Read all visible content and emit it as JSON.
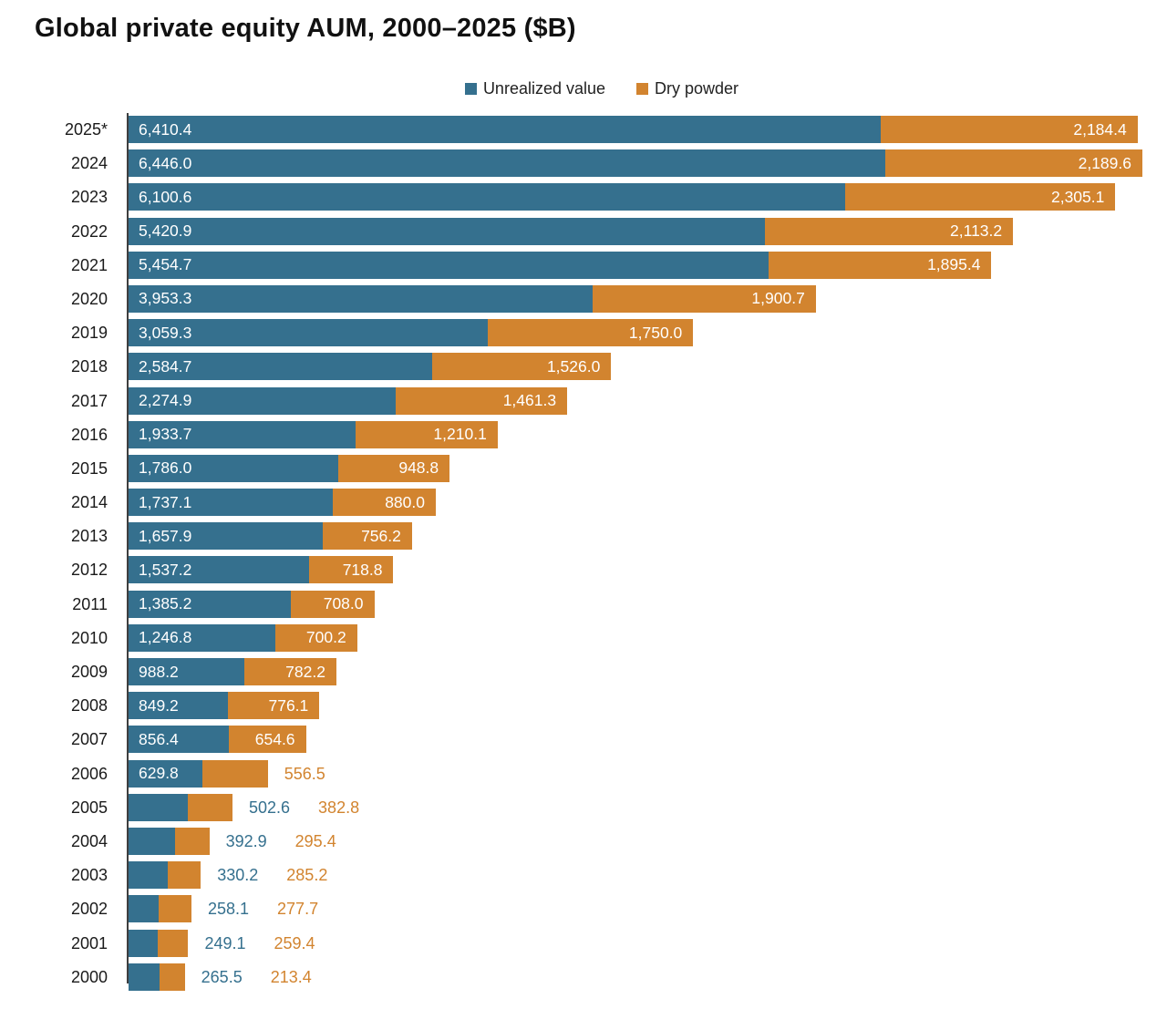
{
  "title": "Global private equity AUM, 2000–2025 ($B)",
  "legend": {
    "items": [
      {
        "label": "Unrealized value",
        "color": "#35708E"
      },
      {
        "label": "Dry powder",
        "color": "#D2842F"
      }
    ]
  },
  "colors": {
    "unrealized": "#35708E",
    "dry_powder": "#D2842F",
    "inside_label_text": "#FFFFFF",
    "year_label_text": "#1A1A1A",
    "axis_line": "#3F3F3F",
    "background": "#FFFFFF"
  },
  "chart_data": {
    "type": "bar",
    "orientation": "horizontal",
    "stacked": true,
    "title": "Global private equity AUM, 2000–2025 ($B)",
    "value_unit": "$B",
    "legend_position": "top-center",
    "grid": false,
    "x_range": [
      0,
      8635.6
    ],
    "categories": [
      "2025*",
      "2024",
      "2023",
      "2022",
      "2021",
      "2020",
      "2019",
      "2018",
      "2017",
      "2016",
      "2015",
      "2014",
      "2013",
      "2012",
      "2011",
      "2010",
      "2009",
      "2008",
      "2007",
      "2006",
      "2005",
      "2004",
      "2003",
      "2002",
      "2001",
      "2000"
    ],
    "series": [
      {
        "name": "Unrealized value",
        "color": "#35708E",
        "values": [
          6410.4,
          6446.0,
          6100.6,
          5420.9,
          5454.7,
          3953.3,
          3059.3,
          2584.7,
          2274.9,
          1933.7,
          1786.0,
          1737.1,
          1657.9,
          1537.2,
          1385.2,
          1246.8,
          988.2,
          849.2,
          856.4,
          629.8,
          502.6,
          392.9,
          330.2,
          258.1,
          249.1,
          265.5
        ]
      },
      {
        "name": "Dry powder",
        "color": "#D2842F",
        "values": [
          2184.4,
          2189.6,
          2305.1,
          2113.2,
          1895.4,
          1900.7,
          1750.0,
          1526.0,
          1461.3,
          1210.1,
          948.8,
          880.0,
          756.2,
          718.8,
          708.0,
          700.2,
          782.2,
          776.1,
          654.6,
          556.5,
          382.8,
          295.4,
          285.2,
          277.7,
          259.4,
          213.4
        ]
      }
    ],
    "label_layout": {
      "unrealized_label_outside_years": [
        "2005",
        "2004",
        "2003",
        "2002",
        "2001",
        "2000"
      ],
      "dry_label_outside_years": [
        "2006",
        "2005",
        "2004",
        "2003",
        "2002",
        "2001",
        "2000"
      ]
    }
  }
}
